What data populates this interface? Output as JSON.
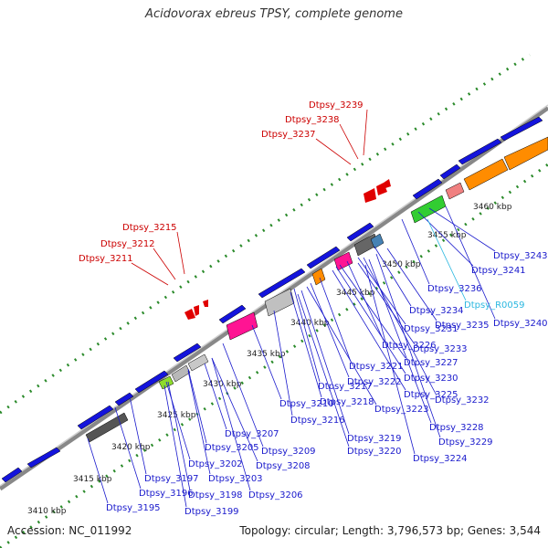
{
  "title": "Acidovorax ebreus TPSY, complete genome",
  "footer": {
    "accession": "Accession: NC_011992",
    "summary": "Topology: circular; Length: 3,796,573 bp; Genes: 3,544"
  },
  "colors": {
    "backbone": "#8c8c8c",
    "cds_forward": "#1010e0",
    "dots": "#2a8a2a",
    "label_cds": "#1a1acc",
    "label_rna": "#2ab7e0",
    "label_red": "#cc0000"
  },
  "scale_ticks": [
    {
      "label": "3410 kbp"
    },
    {
      "label": "3415 kbp"
    },
    {
      "label": "3420 kbp"
    },
    {
      "label": "3425 kbp"
    },
    {
      "label": "3430 kbp"
    },
    {
      "label": "3435 kbp"
    },
    {
      "label": "3440 kbp"
    },
    {
      "label": "3445 kbp"
    },
    {
      "label": "3450 kbp"
    },
    {
      "label": "3455 kbp"
    },
    {
      "label": "3460 kbp"
    }
  ],
  "labels": {
    "red": [
      "Dtpsy_3239",
      "Dtpsy_3238",
      "Dtpsy_3237",
      "Dtpsy_3215",
      "Dtpsy_3212",
      "Dtpsy_3211"
    ],
    "blue": [
      "Dtpsy_3243",
      "Dtpsy_3241",
      "Dtpsy_3236",
      "Dtpsy_R0059",
      "Dtpsy_3240",
      "Dtpsy_3234",
      "Dtpsy_3235",
      "Dtpsy_3231",
      "Dtpsy_3226",
      "Dtpsy_3233",
      "Dtpsy_3227",
      "Dtpsy_3221",
      "Dtpsy_3230",
      "Dtpsy_3222",
      "Dtpsy_3225",
      "Dtpsy_3217",
      "Dtpsy_3232",
      "Dtpsy_3218",
      "Dtpsy_3223",
      "Dtpsy_3210",
      "Dtpsy_3216",
      "Dtpsy_3228",
      "Dtpsy_3229",
      "Dtpsy_3219",
      "Dtpsy_3207",
      "Dtpsy_3220",
      "Dtpsy_3205",
      "Dtpsy_3209",
      "Dtpsy_3224",
      "Dtpsy_3202",
      "Dtpsy_3208",
      "Dtpsy_3197",
      "Dtpsy_3203",
      "Dtpsy_3196",
      "Dtpsy_3198",
      "Dtpsy_3206",
      "Dtpsy_3195",
      "Dtpsy_3199"
    ]
  }
}
